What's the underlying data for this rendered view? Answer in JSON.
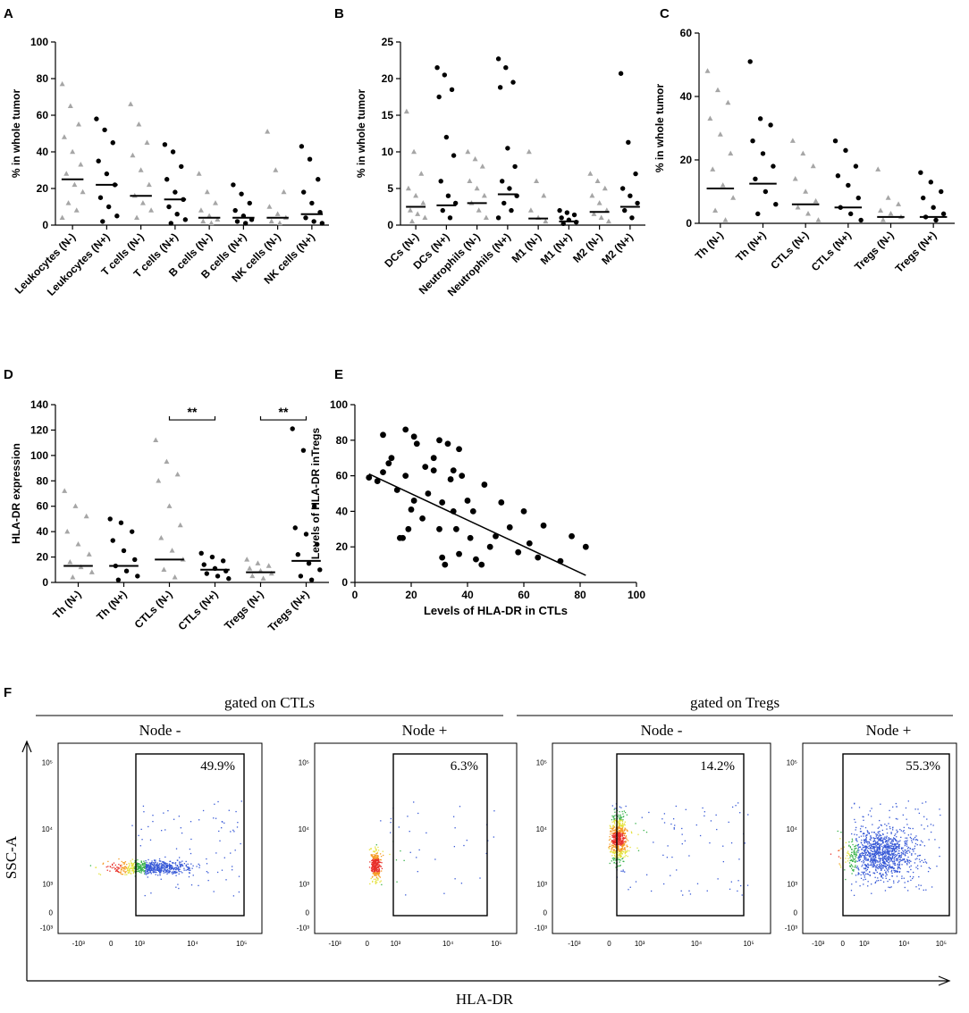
{
  "chart_data": [
    {
      "type": "dotplot",
      "panel": "A",
      "ylabel": "% in whole tumor",
      "ylim": [
        0,
        100
      ],
      "yticks": [
        0,
        20,
        40,
        60,
        80,
        100
      ],
      "groups": [
        {
          "name": "Leukocytes (N-)",
          "color": "#a6a6a6",
          "marker": "triangle",
          "median": 25,
          "values": [
            77,
            65,
            55,
            48,
            40,
            33,
            28,
            22,
            18,
            12,
            8,
            4
          ]
        },
        {
          "name": "Leukocytes (N+)",
          "color": "#000000",
          "marker": "circle",
          "median": 22,
          "values": [
            58,
            52,
            45,
            35,
            28,
            22,
            15,
            10,
            5,
            2
          ]
        },
        {
          "name": "T cells (N-)",
          "color": "#a6a6a6",
          "marker": "triangle",
          "median": 16,
          "values": [
            66,
            55,
            45,
            38,
            30,
            22,
            16,
            12,
            8,
            4
          ]
        },
        {
          "name": "T cells (N+)",
          "color": "#000000",
          "marker": "circle",
          "median": 14,
          "values": [
            44,
            40,
            32,
            25,
            18,
            14,
            10,
            6,
            3,
            1
          ]
        },
        {
          "name": "B cells (N-)",
          "color": "#a6a6a6",
          "marker": "triangle",
          "median": 4,
          "values": [
            28,
            18,
            12,
            8,
            5,
            3,
            2,
            1
          ]
        },
        {
          "name": "B cells (N+)",
          "color": "#000000",
          "marker": "circle",
          "median": 4,
          "values": [
            22,
            17,
            12,
            8,
            5,
            3,
            2,
            1
          ]
        },
        {
          "name": "NK cells (N-)",
          "color": "#a6a6a6",
          "marker": "triangle",
          "median": 4,
          "values": [
            51,
            30,
            18,
            10,
            6,
            4,
            2,
            1
          ]
        },
        {
          "name": "NK cells (N+)",
          "color": "#000000",
          "marker": "circle",
          "median": 6,
          "values": [
            43,
            36,
            25,
            18,
            12,
            7,
            4,
            2,
            1
          ]
        }
      ]
    },
    {
      "type": "dotplot",
      "panel": "B",
      "ylabel": "% in whole tumor",
      "ylim": [
        0,
        25
      ],
      "yticks": [
        0,
        5,
        10,
        15,
        20,
        25
      ],
      "groups": [
        {
          "name": "DCs (N-)",
          "color": "#a6a6a6",
          "marker": "triangle",
          "median": 2.5,
          "values": [
            15.5,
            10,
            7,
            5,
            4,
            3,
            2,
            1.5,
            1,
            0.5
          ]
        },
        {
          "name": "DCs (N+)",
          "color": "#000000",
          "marker": "circle",
          "median": 2.7,
          "values": [
            21.5,
            20.5,
            18.5,
            17.5,
            12,
            9.5,
            6,
            4,
            3,
            2,
            1
          ]
        },
        {
          "name": "Neutrophils (N-)",
          "color": "#a6a6a6",
          "marker": "triangle",
          "median": 3,
          "values": [
            10,
            9,
            8,
            6,
            5,
            4,
            3,
            2,
            1
          ]
        },
        {
          "name": "Neutrophils (N+)",
          "color": "#000000",
          "marker": "circle",
          "median": 4.2,
          "values": [
            22.7,
            21.5,
            19.5,
            18.8,
            10.5,
            8,
            6,
            5,
            4,
            3,
            2,
            1
          ]
        },
        {
          "name": "M1 (N-)",
          "color": "#a6a6a6",
          "marker": "triangle",
          "median": 0.9,
          "values": [
            10,
            6,
            4,
            2,
            1,
            0.5
          ]
        },
        {
          "name": "M1 (N+)",
          "color": "#000000",
          "marker": "circle",
          "median": 0.5,
          "values": [
            2,
            1.7,
            1.4,
            1,
            0.7,
            0.4,
            0.2
          ]
        },
        {
          "name": "M2 (N-)",
          "color": "#a6a6a6",
          "marker": "triangle",
          "median": 1.8,
          "values": [
            7,
            6,
            5,
            4,
            3,
            2,
            1.5,
            1,
            0.5
          ]
        },
        {
          "name": "M2 (N+)",
          "color": "#000000",
          "marker": "circle",
          "median": 2.5,
          "values": [
            20.7,
            11.3,
            7,
            5,
            4,
            3,
            2,
            1
          ]
        }
      ]
    },
    {
      "type": "dotplot",
      "panel": "C",
      "ylabel": "% in whole tumor",
      "ylim": [
        0,
        60
      ],
      "yticks": [
        0,
        20,
        40,
        60
      ],
      "groups": [
        {
          "name": "Th (N-)",
          "color": "#a6a6a6",
          "marker": "triangle",
          "median": 11,
          "values": [
            48,
            42,
            38,
            33,
            28,
            22,
            17,
            12,
            8,
            4,
            1
          ]
        },
        {
          "name": "Th (N+)",
          "color": "#000000",
          "marker": "circle",
          "median": 12.5,
          "values": [
            51,
            33,
            31,
            26,
            22,
            18,
            14,
            10,
            6,
            3
          ]
        },
        {
          "name": "CTLs (N-)",
          "color": "#a6a6a6",
          "marker": "triangle",
          "median": 6,
          "values": [
            26,
            22,
            18,
            14,
            10,
            7,
            5,
            3,
            1
          ]
        },
        {
          "name": "CTLs (N+)",
          "color": "#000000",
          "marker": "circle",
          "median": 5,
          "values": [
            26,
            23,
            18,
            15,
            12,
            8,
            5,
            3,
            1
          ]
        },
        {
          "name": "Tregs (N-)",
          "color": "#a6a6a6",
          "marker": "triangle",
          "median": 2,
          "values": [
            17,
            8,
            6,
            4,
            3,
            2,
            1
          ]
        },
        {
          "name": "Tregs (N+)",
          "color": "#000000",
          "marker": "circle",
          "median": 2,
          "values": [
            16,
            13,
            10,
            8,
            5,
            3,
            2,
            1
          ]
        }
      ]
    },
    {
      "type": "dotplot",
      "panel": "D",
      "ylabel": "HLA-DR expression",
      "ylim": [
        0,
        140
      ],
      "yticks": [
        0,
        20,
        40,
        60,
        80,
        100,
        120,
        140
      ],
      "groups": [
        {
          "name": "Th (N-)",
          "color": "#a6a6a6",
          "marker": "triangle",
          "median": 13,
          "values": [
            72,
            60,
            52,
            40,
            30,
            22,
            16,
            12,
            8,
            4
          ]
        },
        {
          "name": "Th (N+)",
          "color": "#000000",
          "marker": "circle",
          "median": 13,
          "values": [
            50,
            47,
            40,
            33,
            25,
            18,
            13,
            9,
            5,
            2
          ]
        },
        {
          "name": "CTLs (N-)",
          "color": "#a6a6a6",
          "marker": "triangle",
          "median": 18,
          "values": [
            112,
            95,
            85,
            80,
            60,
            45,
            35,
            25,
            18,
            10,
            4
          ]
        },
        {
          "name": "CTLs (N+)",
          "color": "#000000",
          "marker": "circle",
          "median": 10,
          "values": [
            23,
            20,
            17,
            14,
            11,
            9,
            7,
            5,
            3
          ]
        },
        {
          "name": "Tregs (N-)",
          "color": "#a6a6a6",
          "marker": "triangle",
          "median": 8,
          "values": [
            18,
            15,
            13,
            11,
            9,
            7,
            5,
            3
          ]
        },
        {
          "name": "Tregs (N+)",
          "color": "#000000",
          "marker": "circle",
          "median": 17,
          "values": [
            121,
            104,
            60,
            43,
            38,
            30,
            22,
            15,
            10,
            5,
            2
          ]
        }
      ],
      "annotations": [
        {
          "text": "**",
          "from": 2,
          "to": 3,
          "y": 128
        },
        {
          "text": "**",
          "from": 4,
          "to": 5,
          "y": 128
        }
      ]
    },
    {
      "type": "scatter",
      "panel": "E",
      "xlabel": "Levels of HLA-DR in CTLs",
      "ylabel": "Levels of HLA-DR inTregs",
      "color": "#000000",
      "xlim": [
        0,
        100
      ],
      "xticks": [
        0,
        20,
        40,
        60,
        80,
        100
      ],
      "ylim": [
        0,
        100
      ],
      "yticks": [
        0,
        20,
        40,
        60,
        80,
        100
      ],
      "x": [
        5,
        8,
        10,
        10,
        12,
        13,
        15,
        16,
        17,
        18,
        18,
        19,
        20,
        21,
        21,
        22,
        24,
        25,
        26,
        28,
        28,
        30,
        30,
        31,
        31,
        32,
        33,
        34,
        35,
        35,
        36,
        37,
        37,
        38,
        40,
        41,
        42,
        43,
        45,
        46,
        48,
        50,
        52,
        55,
        58,
        60,
        62,
        65,
        67,
        73,
        77,
        82
      ],
      "y": [
        59,
        57,
        62,
        83,
        67,
        70,
        52,
        25,
        25,
        60,
        86,
        30,
        41,
        82,
        46,
        78,
        36,
        65,
        50,
        70,
        63,
        80,
        30,
        45,
        14,
        10,
        78,
        58,
        63,
        40,
        30,
        75,
        16,
        60,
        46,
        25,
        40,
        13,
        10,
        55,
        20,
        26,
        45,
        31,
        17,
        40,
        22,
        14,
        32,
        12,
        26,
        20
      ],
      "fit_line": {
        "x": [
          5,
          82
        ],
        "y": [
          61,
          4
        ]
      }
    },
    {
      "type": "flow",
      "panel": "F",
      "ylabel": "SSC-A",
      "xlabel": "HLA-DR",
      "xtick_labels": [
        "-10³",
        "0",
        "10³",
        "10⁴",
        "10⁵"
      ],
      "ytick_labels": [
        "10⁵",
        "10⁴",
        "10³",
        "0",
        "-10³"
      ],
      "groups": [
        {
          "label": "gated on CTLs",
          "panels": [
            "Node -",
            "Node +"
          ]
        },
        {
          "label": "gated on Tregs",
          "panels": [
            "Node -",
            "Node +"
          ]
        }
      ],
      "values": [
        49.9,
        6.3,
        14.2,
        55.3
      ],
      "value_labels": [
        "49.9%",
        "6.3%",
        "14.2%",
        "55.3%"
      ]
    }
  ]
}
